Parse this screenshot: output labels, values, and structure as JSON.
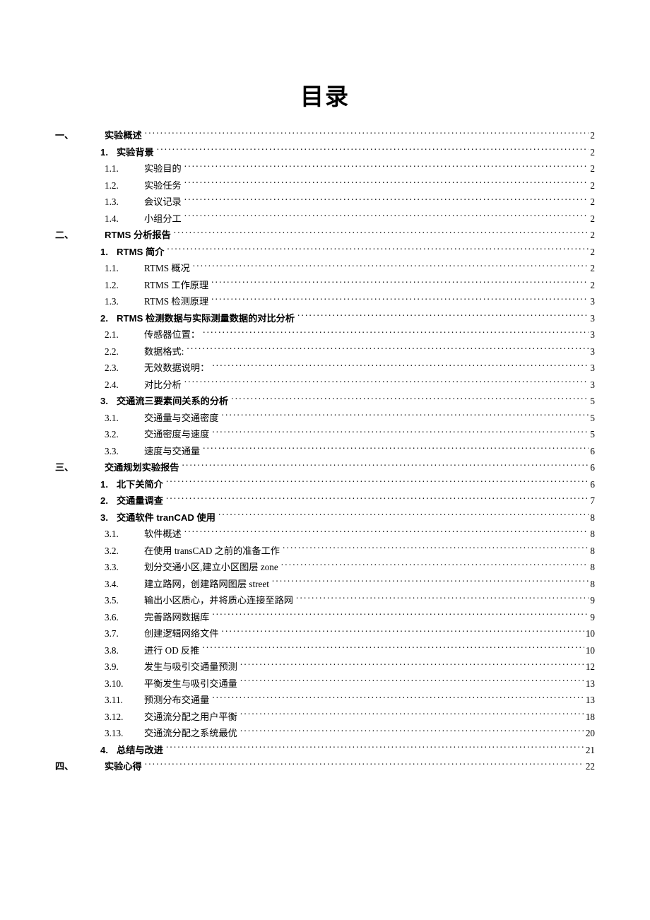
{
  "title": "目录",
  "colors": {
    "text": "#000000",
    "background": "#ffffff"
  },
  "font": {
    "title_family": "SimHei",
    "body_family": "SimSun",
    "bold_family": "Microsoft YaHei",
    "title_size_pt": 24,
    "body_size_pt": 10
  },
  "entries": [
    {
      "level": 1,
      "num": "一、",
      "label": "实验概述",
      "page": "2"
    },
    {
      "level": 2,
      "num": "1.",
      "label": "实验背景",
      "page": "2"
    },
    {
      "level": 3,
      "num": "1.1.",
      "label": "实验目的",
      "page": "2"
    },
    {
      "level": 3,
      "num": "1.2.",
      "label": "实验任务",
      "page": "2"
    },
    {
      "level": 3,
      "num": "1.3.",
      "label": "会议记录",
      "page": "2"
    },
    {
      "level": 3,
      "num": "1.4.",
      "label": "小组分工",
      "page": "2"
    },
    {
      "level": 1,
      "num": "二、",
      "label": "RTMS 分析报告",
      "page": "2"
    },
    {
      "level": 2,
      "num": "1.",
      "label": "RTMS 简介",
      "page": "2"
    },
    {
      "level": 3,
      "num": "1.1.",
      "label": "RTMS 概况",
      "page": "2"
    },
    {
      "level": 3,
      "num": "1.2.",
      "label": "RTMS 工作原理",
      "page": "2"
    },
    {
      "level": 3,
      "num": "1.3.",
      "label": "RTMS 检测原理",
      "page": "3"
    },
    {
      "level": 2,
      "num": "2.",
      "label": "RTMS 检测数据与实际测量数据的对比分析",
      "page": "3"
    },
    {
      "level": 3,
      "num": "2.1.",
      "label": "传感器位置：",
      "page": "3"
    },
    {
      "level": 3,
      "num": "2.2.",
      "label": "数据格式:",
      "page": "3"
    },
    {
      "level": 3,
      "num": "2.3.",
      "label": "无效数据说明：",
      "page": "3"
    },
    {
      "level": 3,
      "num": "2.4.",
      "label": "对比分析",
      "page": "3"
    },
    {
      "level": 2,
      "num": "3.",
      "label": "交通流三要素间关系的分析",
      "page": "5"
    },
    {
      "level": 3,
      "num": "3.1.",
      "label": "交通量与交通密度",
      "page": "5"
    },
    {
      "level": 3,
      "num": "3.2.",
      "label": "交通密度与速度",
      "page": "5"
    },
    {
      "level": 3,
      "num": "3.3.",
      "label": "速度与交通量",
      "page": "6"
    },
    {
      "level": 1,
      "num": "三、",
      "label": "交通规划实验报告",
      "page": "6"
    },
    {
      "level": 2,
      "num": "1.",
      "label": "北下关简介",
      "page": "6"
    },
    {
      "level": 2,
      "num": "2.",
      "label": "交通量调查",
      "page": "7"
    },
    {
      "level": 2,
      "num": "3.",
      "label": "交通软件 tranCAD 使用",
      "page": "8"
    },
    {
      "level": 3,
      "num": "3.1.",
      "label": "软件概述",
      "page": "8"
    },
    {
      "level": 3,
      "num": "3.2.",
      "label": "在使用 transCAD 之前的准备工作",
      "page": "8"
    },
    {
      "level": 3,
      "num": "3.3.",
      "label": "划分交通小区,建立小区图层 zone",
      "page": "8"
    },
    {
      "level": 3,
      "num": "3.4.",
      "label": "建立路网，创建路网图层 street",
      "page": "8"
    },
    {
      "level": 3,
      "num": "3.5.",
      "label": "输出小区质心，并将质心连接至路网",
      "page": "9"
    },
    {
      "level": 3,
      "num": "3.6.",
      "label": "完善路网数据库",
      "page": "9"
    },
    {
      "level": 3,
      "num": "3.7.",
      "label": "创建逻辑网络文件",
      "page": "10"
    },
    {
      "level": 3,
      "num": "3.8.",
      "label": "进行 OD 反推",
      "page": "10"
    },
    {
      "level": 3,
      "num": "3.9.",
      "label": "发生与吸引交通量预测",
      "page": "12"
    },
    {
      "level": 3,
      "num": "3.10.",
      "label": "平衡发生与吸引交通量",
      "page": "13"
    },
    {
      "level": 3,
      "num": "3.11.",
      "label": "预测分布交通量",
      "page": "13"
    },
    {
      "level": 3,
      "num": "3.12.",
      "label": "交通流分配之用户平衡",
      "page": "18"
    },
    {
      "level": 3,
      "num": "3.13.",
      "label": "交通流分配之系统最优",
      "page": "20"
    },
    {
      "level": 2,
      "num": "4.",
      "label": "总结与改进",
      "page": "21"
    },
    {
      "level": 1,
      "num": "四、",
      "label": "实验心得",
      "page": "22"
    }
  ]
}
